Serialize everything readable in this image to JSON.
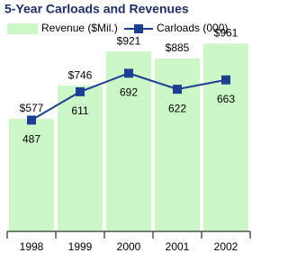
{
  "chart_data": {
    "type": "bar_line",
    "title": "5-Year Carloads and Revenues",
    "categories": [
      "1998",
      "1999",
      "2000",
      "2001",
      "2002"
    ],
    "series": [
      {
        "name": "Revenue ($Mil.)",
        "type": "bar",
        "color": "#ccf7c6",
        "values": [
          577,
          746,
          921,
          885,
          961
        ],
        "value_labels": [
          "$577",
          "$746",
          "$921",
          "$885",
          "$961"
        ]
      },
      {
        "name": "Carloads (000)",
        "type": "line",
        "axis": "y2",
        "color": "#1c3f94",
        "values": [
          487,
          611,
          692,
          622,
          663
        ]
      }
    ],
    "ylim": [
      0,
      1000
    ],
    "y2lim": [
      0,
      855
    ]
  }
}
